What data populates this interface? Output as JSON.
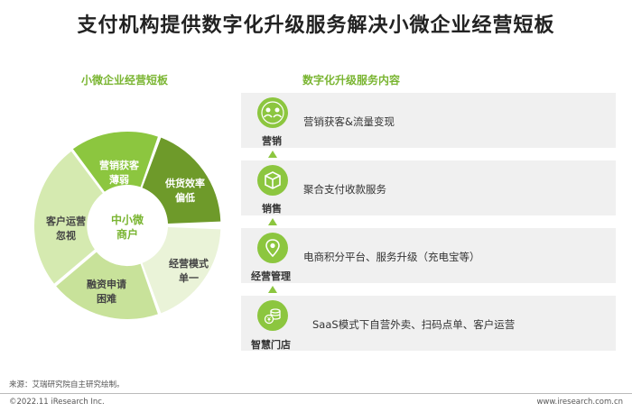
{
  "title": "支付机构提供数字化升级服务解决小微企业经营短板",
  "left_section_title": "小微企业经营短板",
  "right_section_title": "数字化升级服务内容",
  "wheel": {
    "center": [
      "中小微",
      "商户"
    ],
    "segments": [
      {
        "id": "seg-marketing",
        "lines": [
          "营销获客",
          "薄弱"
        ]
      },
      {
        "id": "seg-supply",
        "lines": [
          "供货效率",
          "偏低"
        ]
      },
      {
        "id": "seg-model",
        "lines": [
          "经营模式",
          "单一"
        ]
      },
      {
        "id": "seg-finance",
        "lines": [
          "融资申请",
          "困难"
        ]
      },
      {
        "id": "seg-customer",
        "lines": [
          "客户运营",
          "忽视"
        ]
      }
    ],
    "colors": {
      "dark": "#6e9a2a",
      "mid": "#8cc63f",
      "light": "#c8e29a",
      "pale": "#e6f1cf"
    }
  },
  "steps": [
    {
      "label": "营销",
      "icon": "people-icon",
      "service": "营销获客&流量变现"
    },
    {
      "label": "销售",
      "icon": "package-icon",
      "service": "聚合支付收款服务"
    },
    {
      "label": "经营管理",
      "icon": "location-pin-icon",
      "service": "电商积分平台、服务升级（充电宝等）"
    },
    {
      "label": "智慧门店",
      "icon": "coins-icon",
      "service": "SaaS模式下自营外卖、扫码点单、客户运营"
    }
  ],
  "source": "来源：艾瑞研究院自主研究绘制。",
  "footer_left": "©2022.11 iResearch Inc.",
  "footer_right": "www.iresearch.com.cn"
}
